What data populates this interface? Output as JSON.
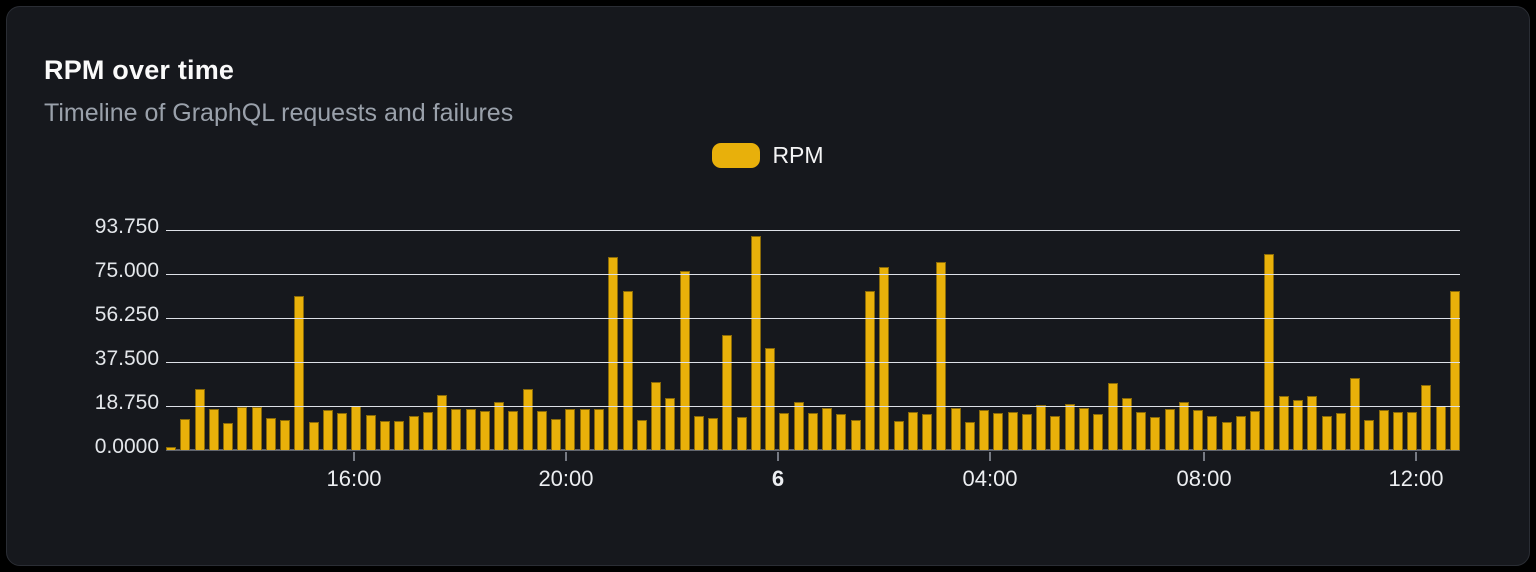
{
  "card": {
    "title": "RPM over time",
    "subtitle": "Timeline of GraphQL requests and failures"
  },
  "legend": {
    "label": "RPM",
    "swatch_color": "#e8b00b"
  },
  "colors": {
    "background": "#000000",
    "card_background": "#16181d",
    "card_border": "#2a2d34",
    "bar_fill": "#e9b10a",
    "bar_stroke": "#8a6a08",
    "gridline": "#dde0e7",
    "axis_line": "#62666f",
    "title_text": "#fafafa",
    "subtitle_text": "#9aa1ab",
    "tick_text": "#e3e6ea"
  },
  "chart_data": {
    "type": "bar",
    "title": "RPM over time",
    "subtitle": "Timeline of GraphQL requests and failures",
    "series_name": "RPM",
    "xlabel": "",
    "ylabel": "",
    "ylim": [
      0,
      93.75
    ],
    "grid": true,
    "legend_position": "top-center",
    "y_ticks": [
      {
        "label": "0.0000",
        "value": 0
      },
      {
        "label": "18.750",
        "value": 18.75
      },
      {
        "label": "37.500",
        "value": 37.5
      },
      {
        "label": "56.250",
        "value": 56.25
      },
      {
        "label": "75.000",
        "value": 75
      },
      {
        "label": "93.750",
        "value": 93.75
      }
    ],
    "x_ticks": [
      {
        "label": "16:00",
        "pos_pct": 14.53,
        "bold": false
      },
      {
        "label": "20:00",
        "pos_pct": 30.91,
        "bold": false
      },
      {
        "label": "6",
        "pos_pct": 47.3,
        "bold": true
      },
      {
        "label": "04:00",
        "pos_pct": 63.68,
        "bold": false
      },
      {
        "label": "08:00",
        "pos_pct": 80.22,
        "bold": false
      },
      {
        "label": "12:00",
        "pos_pct": 96.6,
        "bold": false
      }
    ],
    "values": [
      1.2,
      13.2,
      26,
      17.4,
      11.4,
      18.2,
      18.2,
      13.7,
      12.7,
      65.7,
      12,
      17.1,
      15.9,
      18.6,
      15.1,
      12.2,
      12.5,
      14.4,
      16.4,
      23.3,
      17.4,
      17.5,
      16.5,
      20.3,
      16.6,
      26.1,
      16.6,
      13.3,
      17.5,
      17.5,
      17.5,
      82.4,
      67.7,
      12.6,
      28.9,
      22.1,
      76.4,
      14.7,
      13.7,
      48.8,
      14.1,
      91.4,
      43.3,
      15.8,
      20.5,
      15.9,
      18,
      15.5,
      12.8,
      67.6,
      77.9,
      12.4,
      16.2,
      15.4,
      80.1,
      17.9,
      12.1,
      17.2,
      15.7,
      16.4,
      15.4,
      19,
      14.7,
      19.7,
      18.1,
      15.4,
      28.6,
      22,
      16.2,
      14,
      17.4,
      20.6,
      16.9,
      14.3,
      12.1,
      14.7,
      16.8,
      83.4,
      22.9,
      21.2,
      22.9,
      14.5,
      15.9,
      30.5,
      13,
      16.9,
      16.4,
      16.4,
      27.8,
      18.6,
      67.9
    ]
  }
}
